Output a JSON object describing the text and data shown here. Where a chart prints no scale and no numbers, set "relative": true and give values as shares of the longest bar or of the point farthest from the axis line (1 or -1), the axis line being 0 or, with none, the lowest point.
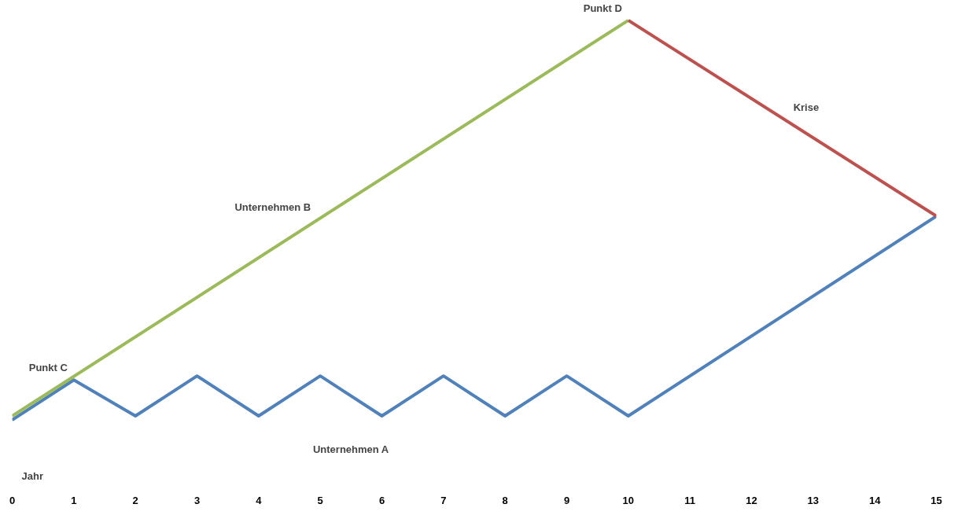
{
  "chart_data": {
    "type": "line",
    "relative": true,
    "xlabel": "Jahr",
    "xlim": [
      0,
      15
    ],
    "xticks": [
      0,
      1,
      2,
      3,
      4,
      5,
      6,
      7,
      8,
      9,
      10,
      11,
      12,
      13,
      14,
      15
    ],
    "series": [
      {
        "name": "Unternehmen A",
        "color": "#4f81bd",
        "x": [
          0,
          1,
          2,
          3,
          4,
          5,
          6,
          7,
          8,
          9,
          10,
          15
        ],
        "values": [
          0,
          0.1,
          0.01,
          0.11,
          0.01,
          0.11,
          0.01,
          0.11,
          0.01,
          0.11,
          0.01,
          0.51
        ]
      },
      {
        "name": "Unternehmen B",
        "color": "#9bbb59",
        "x": [
          0,
          10
        ],
        "values": [
          0.01,
          1.0
        ]
      },
      {
        "name": "Krise",
        "color": "#c0504d",
        "x": [
          10,
          15
        ],
        "values": [
          1.0,
          0.51
        ]
      }
    ],
    "annotations": [
      {
        "text": "Punkt C",
        "x": 1,
        "y": 0.1
      },
      {
        "text": "Punkt D",
        "x": 10,
        "y": 1.0
      }
    ],
    "grid": false,
    "marker": "none",
    "line_style": "solid"
  }
}
